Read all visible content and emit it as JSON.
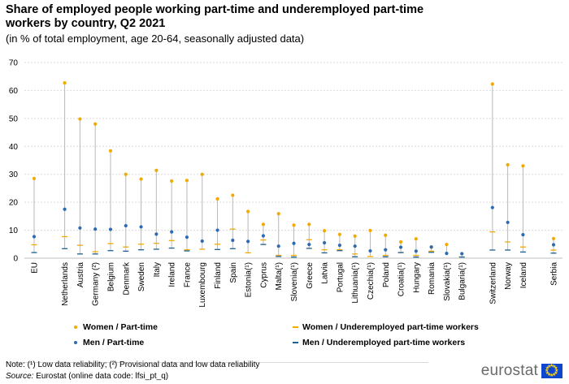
{
  "title": "Share of employed people working part-time and underemployed part-time workers by country, Q2 2021",
  "subtitle": "(in % of total employment, age 20-64, seasonally adjusted data)",
  "colors": {
    "women_part_time": "#f2a900",
    "women_underemployed": "#f2a900",
    "men_part_time": "#2d6ab3",
    "men_underemployed": "#1f5f8f",
    "range_line": "#b9b9b9",
    "axis": "#bfbfbf",
    "grid": "#d9d9d9"
  },
  "legend": {
    "women_part_time": "Women / Part-time",
    "women_underemployed": "Women / Underemployed part-time workers",
    "men_part_time": "Men / Part-time",
    "men_underemployed": "Men / Underemployed part-time workers"
  },
  "notes": {
    "note": "Note: (¹) Low data reliability; (²) Provisional data and low data reliability",
    "source_label": "Source:",
    "source_text": " Eurostat (online data code: lfsi_pt_q)"
  },
  "logo": {
    "text": "eurostat"
  },
  "chart_data": {
    "type": "scatter",
    "title": "Share of employed people working part-time and underemployed part-time workers by country, Q2 2021",
    "ylim": [
      0,
      70
    ],
    "yticks": [
      0,
      10,
      20,
      30,
      40,
      50,
      60,
      70
    ],
    "grid": true,
    "legend_position": "bottom",
    "categories": [
      "EU",
      "Netherlands",
      "Austria",
      "Germany (²)",
      "Belgium",
      "Denmark",
      "Sweden",
      "Italy",
      "Ireland",
      "France",
      "Luxembourg",
      "Finland",
      "Spain",
      "Estonia(¹)",
      "Cyprus",
      "Malta(¹)",
      "Slovenia(¹)",
      "Greece",
      "Latvia",
      "Portugal",
      "Lithuania(¹)",
      "Czechia(¹)",
      "Poland",
      "Croatia(¹)",
      "Hungary",
      "Romania",
      "Slovakia(¹)",
      "Bulgaria(¹)",
      "Switzerland",
      "Norway",
      "Iceland",
      "Serbia"
    ],
    "series": [
      {
        "name": "Women / Part-time",
        "marker": "dot",
        "values": [
          28.5,
          62.7,
          49.8,
          48.0,
          38.4,
          30.0,
          28.3,
          31.4,
          27.6,
          27.8,
          30.0,
          21.2,
          22.5,
          16.7,
          12.1,
          15.9,
          11.8,
          12.1,
          9.8,
          8.5,
          7.9,
          9.9,
          8.2,
          5.8,
          6.9,
          4.0,
          4.9,
          null,
          62.3,
          33.4,
          33.0,
          7.0
        ]
      },
      {
        "name": "Women / Underemployed part-time workers",
        "marker": "dash",
        "values": [
          4.8,
          7.7,
          4.6,
          2.3,
          5.2,
          4.0,
          5.0,
          5.3,
          6.3,
          3.0,
          3.2,
          5.0,
          10.4,
          1.9,
          6.5,
          1.0,
          1.0,
          6.6,
          3.0,
          3.0,
          1.5,
          0.6,
          1.0,
          2.0,
          1.0,
          2.5,
          null,
          null,
          9.4,
          5.8,
          4.0,
          2.9
        ]
      },
      {
        "name": "Men / Part-time",
        "marker": "dot",
        "values": [
          7.7,
          17.5,
          10.8,
          10.4,
          10.3,
          11.6,
          11.2,
          8.6,
          9.4,
          7.5,
          6.1,
          10.0,
          6.4,
          6.0,
          8.0,
          4.3,
          5.3,
          4.9,
          5.5,
          4.6,
          4.3,
          2.6,
          3.0,
          3.9,
          2.5,
          4.0,
          1.7,
          1.6,
          18.1,
          12.8,
          8.4,
          4.8
        ]
      },
      {
        "name": "Men / Underemployed part-time workers",
        "marker": "dash",
        "values": [
          2.0,
          3.4,
          1.5,
          1.5,
          2.7,
          2.5,
          3.0,
          3.2,
          3.6,
          2.6,
          null,
          3.1,
          3.4,
          null,
          4.9,
          0.6,
          0.4,
          3.5,
          1.9,
          2.7,
          0.5,
          null,
          0.5,
          2.0,
          0.4,
          2.1,
          null,
          0.4,
          2.9,
          2.9,
          2.2,
          1.8
        ]
      }
    ]
  }
}
